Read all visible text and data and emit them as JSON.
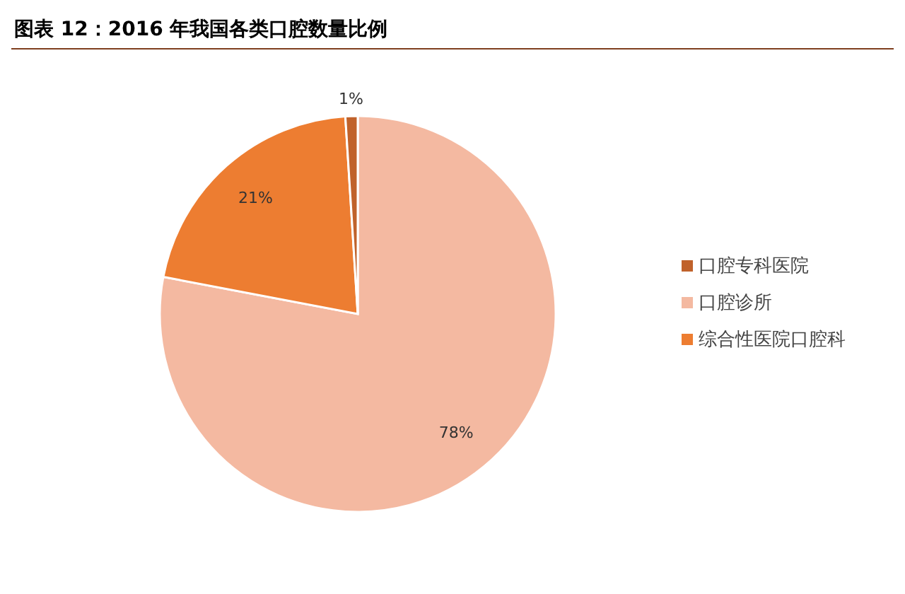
{
  "chart_data": {
    "type": "pie",
    "title": "图表 12：2016 年我国各类口腔数量比例",
    "categories": [
      "口腔诊所",
      "综合性医院口腔科",
      "口腔专科医院"
    ],
    "values": [
      78,
      21,
      1
    ],
    "colors": [
      "#f4b9a1",
      "#ed7d31",
      "#c0622b"
    ],
    "value_labels": [
      "78%",
      "21%",
      "1%"
    ],
    "legend": "right"
  }
}
